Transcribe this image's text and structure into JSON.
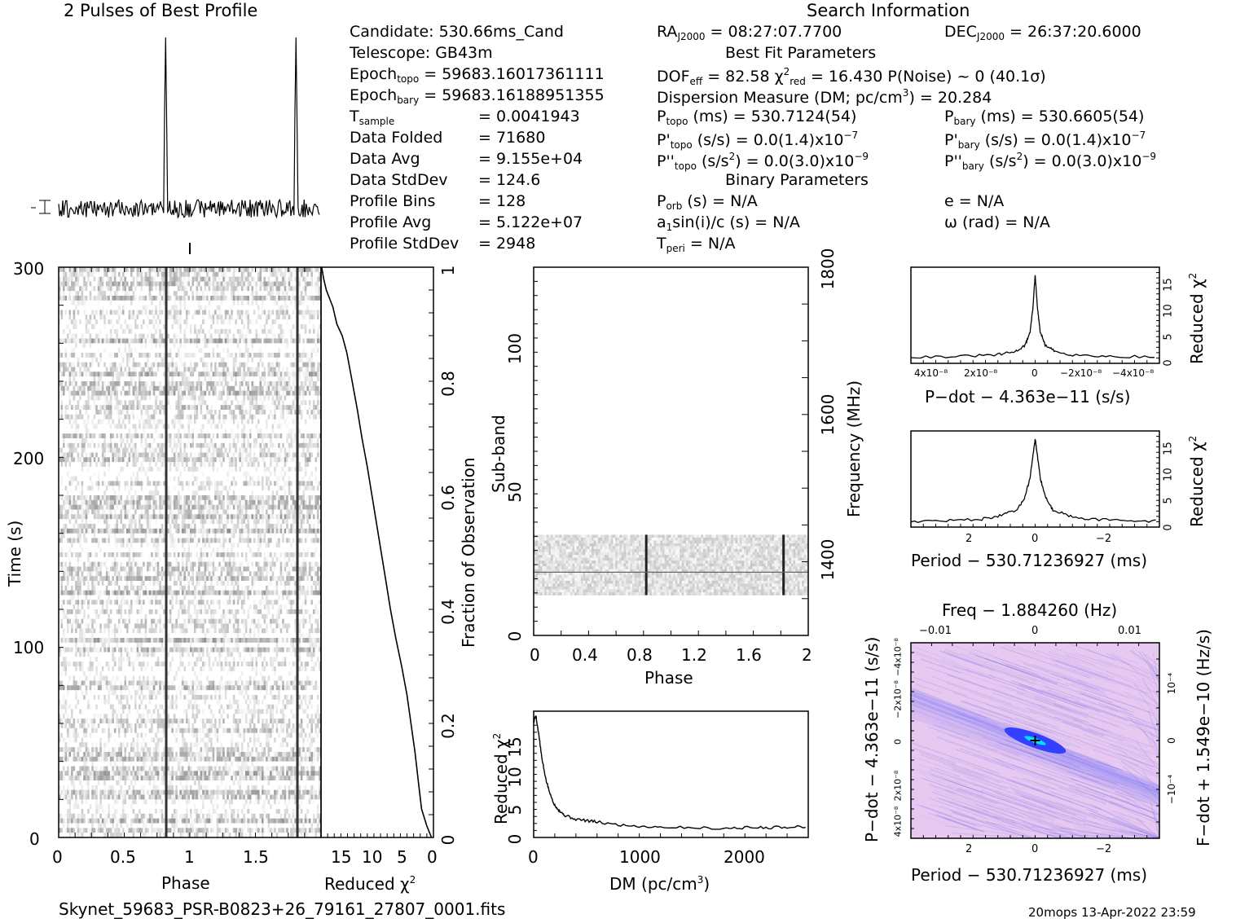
{
  "header": {
    "profile_title": "2 Pulses of Best Profile",
    "search_title": "Search Information",
    "best_fit_title": "Best Fit Parameters",
    "binary_title": "Binary Parameters"
  },
  "info": {
    "candidate": "Candidate:  530.66ms_Cand",
    "telescope": "Telescope:  GB43m",
    "epoch_topo_label": "Epoch",
    "epoch_topo_sub": "topo",
    "epoch_topo_val": " = 59683.16017361111",
    "epoch_bary_label": "Epoch",
    "epoch_bary_sub": "bary",
    "epoch_bary_val": " = 59683.16188951355",
    "tsample_label": "T",
    "tsample_sub": "sample",
    "tsample_val": "=   0.0041943",
    "data_folded_label": "Data Folded",
    "data_folded_val": "=   71680",
    "data_avg_label": "Data Avg",
    "data_avg_val": "=   9.155e+04",
    "data_std_label": "Data StdDev",
    "data_std_val": "=   124.6",
    "prof_bins_label": "Profile Bins",
    "prof_bins_val": "=   128",
    "prof_avg_label": "Profile Avg",
    "prof_avg_val": "=   5.122e+07",
    "prof_std_label": "Profile StdDev",
    "prof_std_val": "=   2948",
    "ra_label": "RA",
    "ra_sub": "J2000",
    "ra_val": " = 08:27:07.7700",
    "dec_label": "DEC",
    "dec_sub": "J2000",
    "dec_val": " = 26:37:20.6000",
    "dof_text": "DOF",
    "dof_sub": "eff",
    "dof_val": " = 82.58  χ",
    "chi_sup": "2",
    "chi_sub": "red",
    "chi_val": " = 16.430  P(Noise) ~ 0    (40.1σ)",
    "dm_text": "Dispersion Measure (DM; pc/cm",
    "dm_sup": "3",
    "dm_val": ") = 20.284",
    "ptopo_label": "P",
    "ptopo_sub": "topo",
    "ptopo_val": " (ms) =  530.7124(54)",
    "pbary_label": "P",
    "pbary_sub": "bary",
    "pbary_val": " (ms) =  530.6605(54)",
    "pdtopo_label": "P'",
    "pdtopo_sub": "topo",
    "pdtopo_val": " (s/s) = 0.0(1.4)x10",
    "pdtopo_sup": "−7",
    "pdbary_label": "P'",
    "pdbary_sub": "bary",
    "pdbary_val": " (s/s) = 0.0(1.4)x10",
    "pdbary_sup": "−7",
    "pddtopo_label": "P''",
    "pddtopo_sub": "topo",
    "pddtopo_val": " (s/s",
    "pddtopo_sup1": "2",
    "pddtopo_val2": ") = 0.0(3.0)x10",
    "pddtopo_sup2": "−9",
    "pddbary_label": "P''",
    "pddbary_sub": "bary",
    "pddbary_val": " (s/s",
    "pddbary_sup1": "2",
    "pddbary_val2": ") = 0.0(3.0)x10",
    "pddbary_sup2": "−9",
    "porb_label": "P",
    "porb_sub": "orb",
    "porb_val": " (s) = N/A",
    "e_text": "e = N/A",
    "asini_text": "a",
    "asini_sub": "1",
    "asini_val": "sin(i)/c (s) = N/A",
    "omega_text": "ω (rad) = N/A",
    "tperi_label": "T",
    "tperi_sub": "peri",
    "tperi_val": " = N/A"
  },
  "axes": {
    "time_label": "Time (s)",
    "phase_label": "Phase",
    "redchi_label": "Reduced χ",
    "redchi_sup": "2",
    "fraction_label": "Fraction of Observation",
    "subband_label": "Sub-band",
    "frequency_label": "Frequency (MHz)",
    "sub_phase_label": "Phase",
    "dm_axis_label": "DM (pc/cm",
    "dm_axis_sup": "3",
    "dm_axis_close": ")",
    "dm_redchi_label": "Reduced χ",
    "pdot_label": "P−dot − 4.363e−11 (s/s)",
    "period_label": "Period − 530.71236927 (ms)",
    "period2_label": "Period − 530.71236927 (ms)",
    "freq_label": "Freq − 1.884260 (Hz)",
    "pdot_y_label": "P−dot − 4.363e−11 (s/s)",
    "fdot_label": "F−dot + 1.549e−10 (Hz/s)",
    "rc_label": "Reduced χ"
  },
  "ticks": {
    "time": [
      "0",
      "100",
      "200",
      "300"
    ],
    "phase": [
      "0",
      "0.5",
      "1",
      "1.5"
    ],
    "redchi": [
      "15",
      "10",
      "5",
      "0"
    ],
    "fraction": [
      "0",
      "0.2",
      "0.4",
      "0.6",
      "0.8",
      "1"
    ],
    "subband": [
      "0",
      "50",
      "100"
    ],
    "freq": [
      "1400",
      "1600",
      "1800"
    ],
    "sub_phase": [
      "0",
      "0.4",
      "0.8",
      "1.2",
      "1.6",
      "2"
    ],
    "dm_x": [
      "0",
      "1000",
      "2000"
    ],
    "dm_y": [
      "0",
      "5",
      "10",
      "15"
    ],
    "pd_x": [
      "4x10⁻⁸",
      "2x10⁻⁸",
      "0",
      "−2x10⁻⁸",
      "−4x10⁻⁸"
    ],
    "pd_y": [
      "0",
      "5",
      "10",
      "15"
    ],
    "per_x": [
      "2",
      "0",
      "−2"
    ],
    "per_y": [
      "0",
      "5",
      "10",
      "15"
    ],
    "ff_top": [
      "−0.01",
      "0",
      "0.01"
    ],
    "ff_bottom": [
      "2",
      "0",
      "−2"
    ],
    "ff_left": [
      "4x10⁻⁸",
      "2x10⁻⁸",
      "0",
      "−2x10⁻⁸",
      "−4x10⁻⁸"
    ],
    "ff_right": [
      "−10⁻⁴",
      "0",
      "10⁻⁴"
    ]
  },
  "footer": {
    "filename": "Skynet_59683_PSR-B0823+26_79161_27807_0001.fits",
    "stamp": "20mops 13-Apr-2022 23:59"
  },
  "colors": {
    "ink": "#000000",
    "grey_band": "#d8d8d8",
    "ff_bg": "#e6c8f0",
    "ff_blue": "#3340ff"
  },
  "chart_data": [
    {
      "type": "line",
      "title": "2 Pulses of Best Profile",
      "xlabel": "",
      "ylabel": "",
      "x_range": [
        0,
        2
      ],
      "peaks_phase": [
        0.82,
        1.82
      ],
      "profile_bins": 128
    },
    {
      "type": "heatmap",
      "xlabel": "Phase",
      "ylabel": "Time (s)",
      "xlim": [
        0,
        2
      ],
      "ylim": [
        0,
        300
      ],
      "pulse_phases": [
        0.82,
        1.82
      ]
    },
    {
      "type": "line",
      "xlabel": "Reduced χ2",
      "ylabel": "Fraction of Observation",
      "xlim": [
        17,
        0
      ],
      "ylim": [
        0,
        1
      ],
      "x": [
        0.3,
        1.0,
        1.8,
        2.3,
        2.8,
        3.4,
        4.0,
        4.8,
        5.7,
        6.5,
        7.2,
        7.9,
        8.6,
        9.3,
        10.0,
        10.8,
        11.5,
        12.3,
        13.1,
        13.8,
        14.6,
        15.2,
        16.2,
        16.6,
        16.9
      ],
      "y": [
        0.0,
        0.02,
        0.05,
        0.1,
        0.15,
        0.2,
        0.25,
        0.3,
        0.35,
        0.4,
        0.45,
        0.5,
        0.55,
        0.6,
        0.65,
        0.7,
        0.75,
        0.8,
        0.85,
        0.88,
        0.9,
        0.93,
        0.96,
        0.98,
        1.0
      ]
    },
    {
      "type": "heatmap",
      "xlabel": "Phase",
      "ylabel": "Sub-band",
      "xlim": [
        0,
        2
      ],
      "ylim": [
        0,
        128
      ],
      "freq_range_mhz": [
        1300,
        1800
      ],
      "occupied_subbands": [
        14,
        35
      ],
      "pulse_phases": [
        0.82,
        1.82
      ]
    },
    {
      "type": "line",
      "xlabel": "DM (pc/cm3)",
      "ylabel": "Reduced χ2",
      "xlim": [
        0,
        2600
      ],
      "ylim": [
        0,
        18
      ],
      "x": [
        0,
        20,
        50,
        80,
        120,
        160,
        200,
        250,
        300,
        400,
        500,
        600,
        800,
        1000,
        1200,
        1500,
        1800,
        2000,
        2200,
        2400,
        2600
      ],
      "y": [
        16.4,
        17.5,
        14.5,
        11.0,
        8.0,
        6.0,
        4.6,
        3.7,
        3.1,
        2.6,
        2.4,
        2.2,
        1.8,
        1.6,
        1.5,
        1.4,
        1.3,
        1.4,
        1.4,
        1.5,
        1.6
      ]
    },
    {
      "type": "line",
      "xlabel": "P-dot − 4.363e-11 (s/s)",
      "ylabel": "Reduced χ2",
      "xlim": [
        5e-08,
        -5e-08
      ],
      "ylim": [
        0,
        18
      ],
      "x": [
        5e-08,
        3e-08,
        1.5e-08,
        8e-09,
        4e-09,
        2e-09,
        1e-09,
        0,
        -1e-09,
        -2e-09,
        -4e-09,
        -8e-09,
        -1.5e-08,
        -3e-08,
        -5e-08
      ],
      "y": [
        1.2,
        1.3,
        1.6,
        2.2,
        3.4,
        6.0,
        10.0,
        16.4,
        10.0,
        6.0,
        3.4,
        2.2,
        1.6,
        1.3,
        1.2
      ]
    },
    {
      "type": "line",
      "xlabel": "Period − 530.71236927 (ms)",
      "ylabel": "Reduced χ2",
      "xlim": [
        3.5,
        -3.5
      ],
      "ylim": [
        0,
        18
      ],
      "x": [
        3.5,
        2.5,
        1.5,
        1.0,
        0.5,
        0.3,
        0.15,
        0.05,
        0,
        -0.05,
        -0.15,
        -0.3,
        -0.5,
        -1.0,
        -1.5,
        -2.5,
        -3.5
      ],
      "y": [
        1.1,
        1.2,
        1.5,
        2.1,
        3.2,
        5.5,
        9.0,
        14.0,
        16.4,
        14.0,
        9.0,
        5.5,
        3.2,
        2.1,
        1.5,
        1.2,
        1.1
      ]
    },
    {
      "type": "heatmap",
      "xlabel": "Period − 530.71236927 (ms)",
      "ylabel": "P-dot − 4.363e-11 (s/s)",
      "top_label": "Freq − 1.884260 (Hz)",
      "right_label": "F-dot + 1.549e-10 (Hz/s)",
      "xlim": [
        3.5,
        -3.5
      ],
      "peak": [
        0,
        0
      ]
    }
  ]
}
